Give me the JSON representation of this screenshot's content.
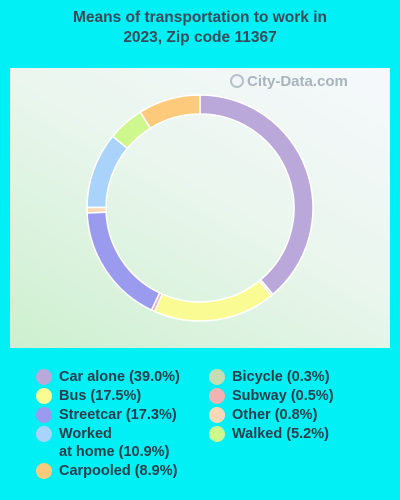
{
  "title_line1": "Means of transportation to work in",
  "title_line2": "2023, Zip code 11367",
  "watermark": "City-Data.com",
  "chart_data": {
    "type": "pie",
    "title": "Means of transportation to work in 2023, Zip code 11367",
    "style": "donut",
    "legend_position": "bottom",
    "series": [
      {
        "name": "Car alone (39.0%)",
        "value": 39.0,
        "color": "#bba8db"
      },
      {
        "name": "Bicycle (0.3%)",
        "value": 0.3,
        "color": "#c6dcb3"
      },
      {
        "name": "Bus (17.5%)",
        "value": 17.5,
        "color": "#fbfb93"
      },
      {
        "name": "Subway (0.5%)",
        "value": 0.5,
        "color": "#f3b1b2"
      },
      {
        "name": "Streetcar (17.3%)",
        "value": 17.3,
        "color": "#9a9bef"
      },
      {
        "name": "Other (0.8%)",
        "value": 0.8,
        "color": "#fdd8b7"
      },
      {
        "name": "Worked\nat home (10.9%)",
        "value": 10.9,
        "color": "#a9d3fb"
      },
      {
        "name": "Walked (5.2%)",
        "value": 5.2,
        "color": "#cef78d"
      },
      {
        "name": "Carpooled (8.9%)",
        "value": 8.9,
        "color": "#fdc97a"
      }
    ]
  }
}
